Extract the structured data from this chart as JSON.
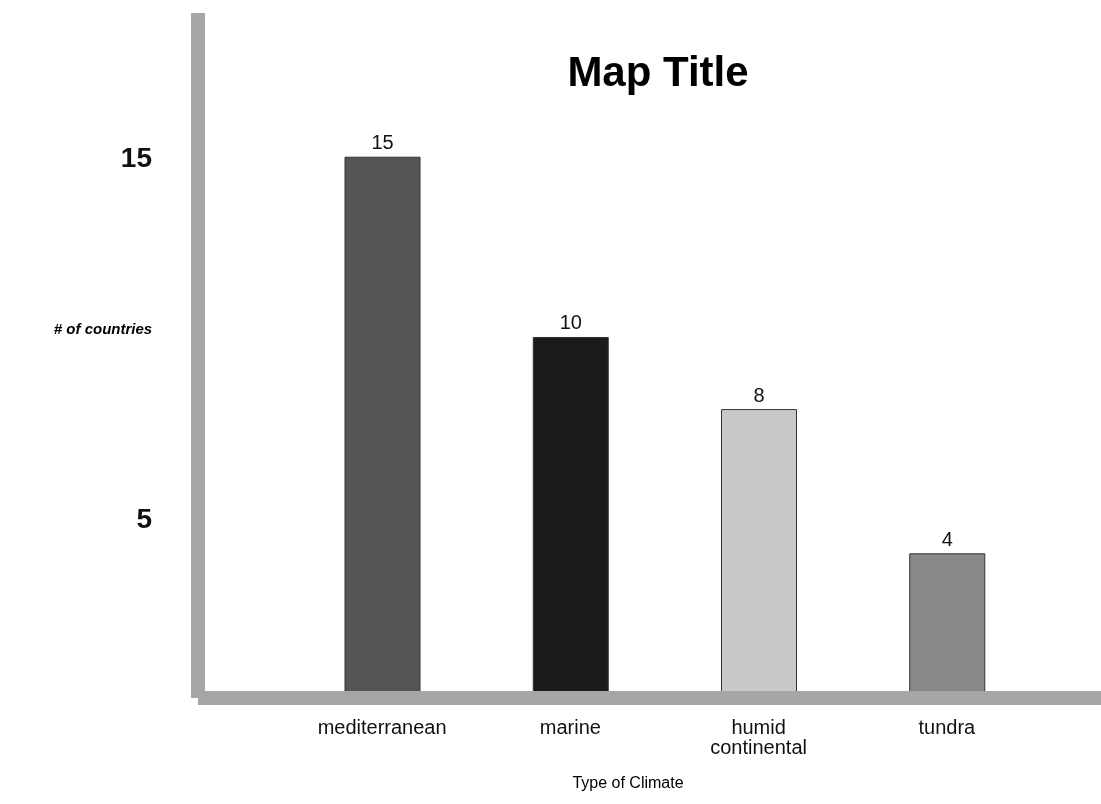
{
  "chart_data": {
    "type": "bar",
    "title": "Map Title",
    "xlabel": "Type of Climate",
    "ylabel": "# of countries",
    "categories": [
      "mediterranean",
      "marine",
      "humid continental",
      "tundra"
    ],
    "values": [
      15,
      10,
      8,
      4
    ],
    "colors": [
      "#555555",
      "#1a1a1a",
      "#c8c8c8",
      "#888888"
    ],
    "ylim": [
      0,
      19
    ],
    "yticks": [
      5,
      15
    ],
    "grid": false,
    "data_labels": true,
    "legend": false
  }
}
